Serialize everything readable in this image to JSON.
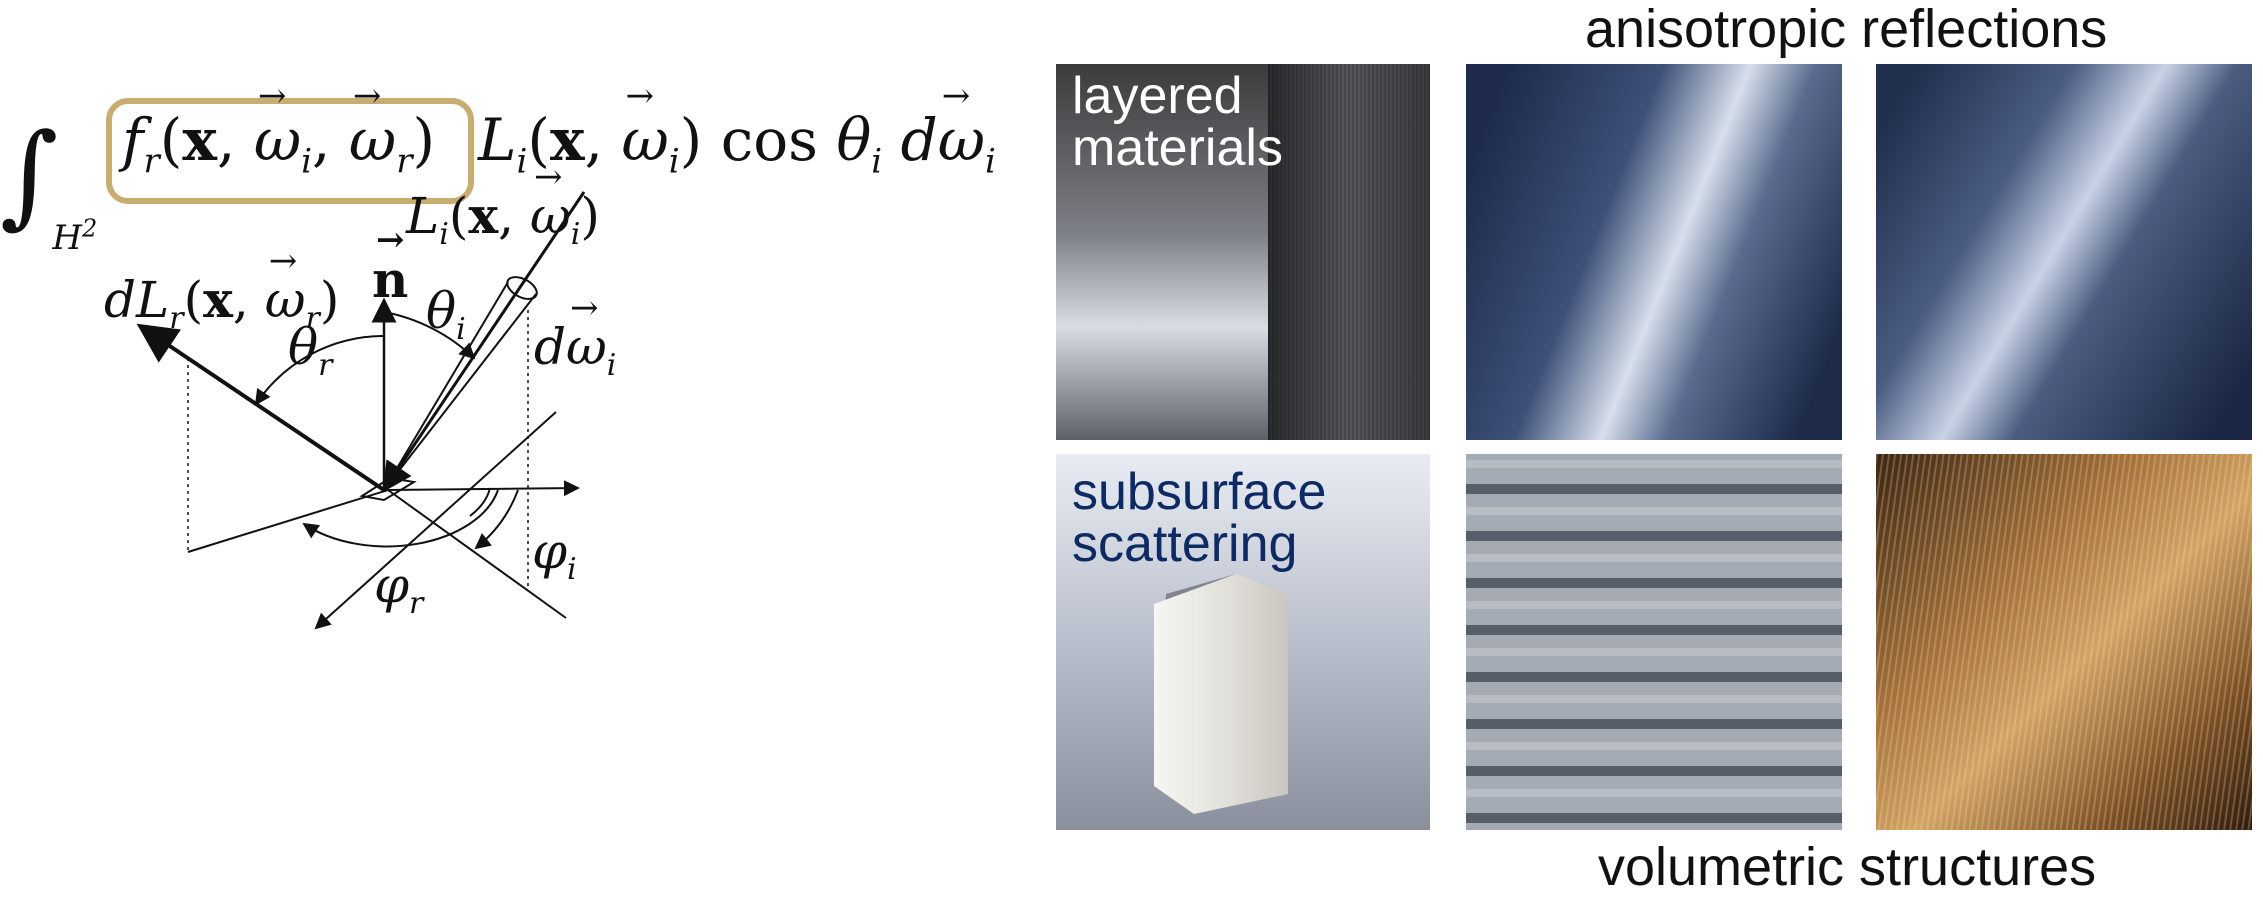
{
  "equation": {
    "integral": "∫",
    "domain": "H",
    "domain_sup": "2",
    "brdf": {
      "f": "f",
      "sub": "r",
      "open": "(",
      "x": "x",
      "comma1": ",",
      "omega_i": "ω",
      "sub_i": "i",
      "comma2": ",",
      "omega_r": "ω",
      "sub_r": "r",
      "close": ")"
    },
    "radiance": {
      "L": "L",
      "sub": "i",
      "open": "(",
      "x": "x",
      "comma": ",",
      "omega": "ω",
      "omega_sub": "i",
      "close": ")"
    },
    "cos": "cos",
    "theta": "θ",
    "theta_sub": "i",
    "d": "d",
    "domega": "ω",
    "domega_sub": "i"
  },
  "diagram": {
    "incident_label": {
      "L": "L",
      "sub": "i",
      "open": "(",
      "x": "x",
      "comma": ",",
      "omega": "ω",
      "omega_sub": "i",
      "close": ")"
    },
    "reflected_label": {
      "d": "d",
      "L": "L",
      "sub": "r",
      "open": "(",
      "x": "x",
      "comma": ",",
      "omega": "ω",
      "omega_sub": "r",
      "close": ")"
    },
    "normal_label": "n",
    "theta_i": {
      "sym": "θ",
      "sub": "i"
    },
    "theta_r": {
      "sym": "θ",
      "sub": "r"
    },
    "domega_i": {
      "d": "d",
      "sym": "ω",
      "sub": "i"
    },
    "phi_i": {
      "sym": "φ",
      "sub": "i"
    },
    "phi_r": {
      "sym": "φ",
      "sub": "r"
    }
  },
  "gallery": {
    "title_top": "anisotropic reflections",
    "title_bottom": "volumetric structures",
    "tiles": [
      {
        "label": "layered\nmaterials",
        "label_color": "#ffffff"
      },
      {
        "label": "",
        "label_color": ""
      },
      {
        "label": "",
        "label_color": ""
      },
      {
        "label": "subsurface\nscattering",
        "label_color": "#0d2a63"
      },
      {
        "label": "",
        "label_color": ""
      },
      {
        "label": "",
        "label_color": ""
      }
    ],
    "colors": {
      "metal_blue": "#2b3c63",
      "metal_highlight": "#c9d3e6",
      "fabric": "#8f959e",
      "hair": "#a5723c",
      "brdf_box": "#c7ad72"
    }
  }
}
